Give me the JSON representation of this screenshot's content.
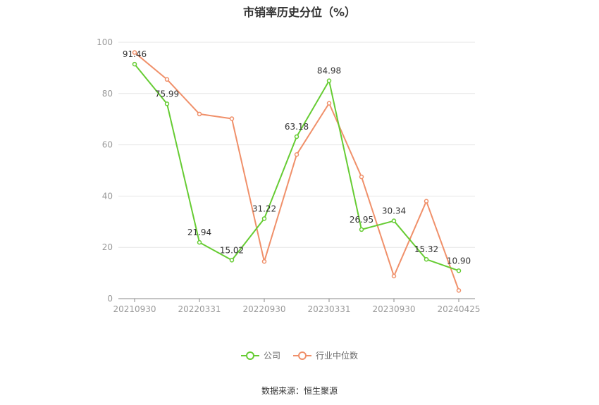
{
  "title": "市销率历史分位（%）",
  "source": "数据来源：恒生聚源",
  "legend": {
    "company": "公司",
    "industry": "行业中位数"
  },
  "colors": {
    "company": "#66cc33",
    "industry": "#f0906a",
    "grid": "#e6e6e6",
    "axis": "#999999"
  },
  "chart_data": {
    "type": "line",
    "x_tick_labels": [
      "20210930",
      "20220331",
      "20220930",
      "20230331",
      "20230930",
      "20240425"
    ],
    "ylim": [
      0,
      100
    ],
    "y_ticks": [
      0,
      20,
      40,
      60,
      80,
      100
    ],
    "series": [
      {
        "name": "公司",
        "values": [
          91.46,
          75.99,
          21.94,
          15.02,
          31.22,
          63.18,
          84.98,
          26.95,
          30.34,
          15.32,
          10.9
        ],
        "labels": [
          "91.46",
          "75.99",
          "21.94",
          "15.02",
          "31.22",
          "63.18",
          "84.98",
          "26.95",
          "30.34",
          "15.32",
          "10.90"
        ]
      },
      {
        "name": "行业中位数",
        "values": [
          96,
          85.5,
          72,
          70.2,
          14.5,
          56.2,
          76.2,
          47.5,
          8.8,
          38,
          3.2
        ]
      }
    ]
  }
}
